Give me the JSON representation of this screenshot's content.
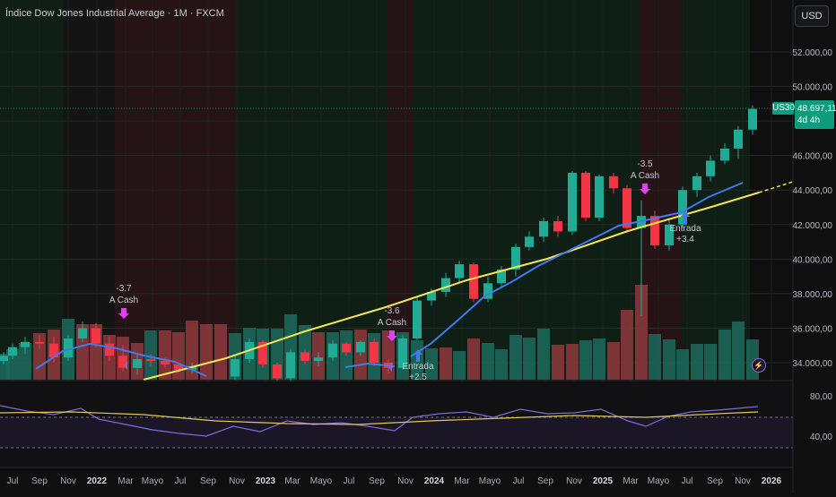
{
  "header": {
    "title": "Índice Dow Jones Industrial Average · 1M · FXCM",
    "currency_button": "USD"
  },
  "price_axis": {
    "ticks": [
      "52.000,00",
      "50.000,00",
      "46.000,00",
      "44.000,00",
      "42.000,00",
      "40.000,00",
      "38.000,00",
      "36.000,00",
      "34.000,00"
    ],
    "current_symbol": "US30",
    "current_price": "48.697,11",
    "countdown": "4d 4h"
  },
  "rsi_axis": {
    "ticks": [
      "80,00",
      "40,00"
    ]
  },
  "time_axis": {
    "labels": [
      "Jul",
      "Sep",
      "Nov",
      "2022",
      "Mar",
      "Mayo",
      "Jul",
      "Sep",
      "Nov",
      "2023",
      "Mar",
      "Mayo",
      "Jul",
      "Sep",
      "Nov",
      "2024",
      "Mar",
      "Mayo",
      "Jul",
      "Sep",
      "Nov",
      "2025",
      "Mar",
      "Mayo",
      "Jul",
      "Sep",
      "Nov",
      "2026"
    ]
  },
  "annotations": [
    {
      "value": "-3.7",
      "label": "A Cash"
    },
    {
      "value": "-3.6",
      "label": "A Cash"
    },
    {
      "value": "Entrada",
      "label": "+2.5"
    },
    {
      "value": "-3.5",
      "label": "A Cash"
    },
    {
      "value": "Entrada",
      "label": "+3.4"
    }
  ],
  "colors": {
    "up": "#22ab94",
    "down": "#f23645",
    "ma_yellow": "#f5e553",
    "ma_blue": "#3f7bf0",
    "rsi": "#7e6bd6",
    "signal": "#e040fb"
  }
}
